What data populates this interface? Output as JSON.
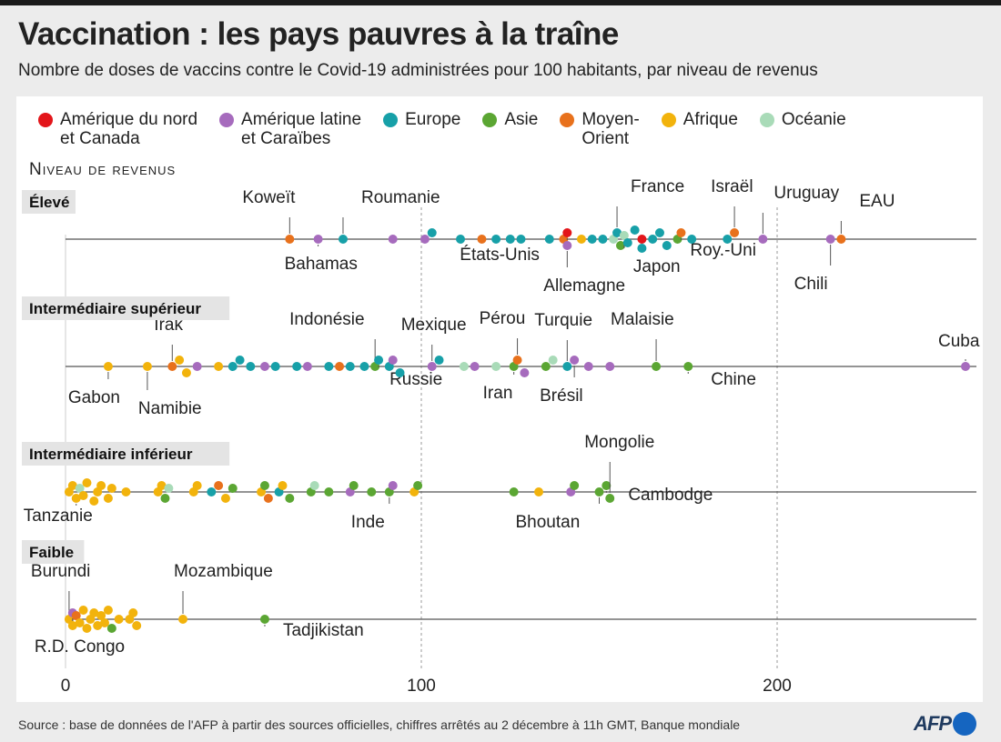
{
  "title": "Vaccination : les pays pauvres à la traîne",
  "subtitle": "Nombre de doses de vaccins contre le Covid-19 administrées pour 100 habitants, par niveau de revenus",
  "source": "Source : base de données de l'AFP à partir des sources officielles, chiffres arrêtés au 2 décembre à 11h GMT, Banque mondiale",
  "logo_text": "AFP",
  "section_title": "Niveau de revenus",
  "legend": [
    {
      "key": "nam",
      "label": "Amérique du nord\net Canada",
      "color": "#e3151a"
    },
    {
      "key": "lat",
      "label": "Amérique latine\net Caraïbes",
      "color": "#a66bbd"
    },
    {
      "key": "eur",
      "label": "Europe",
      "color": "#17a0a8"
    },
    {
      "key": "asi",
      "label": "Asie",
      "color": "#5ba633"
    },
    {
      "key": "mo",
      "label": "Moyen-\nOrient",
      "color": "#e8711c"
    },
    {
      "key": "afr",
      "label": "Afrique",
      "color": "#f2b30c"
    },
    {
      "key": "oce",
      "label": "Océanie",
      "color": "#a9dbb8"
    }
  ],
  "chart_data": {
    "type": "scatter",
    "x_range": [
      0,
      250
    ],
    "x_ticks": [
      0,
      100,
      200
    ],
    "rows": [
      {
        "label": "Élevé",
        "points": [
          {
            "x": 63,
            "region": "mo",
            "label": "Koweït"
          },
          {
            "x": 71,
            "region": "lat",
            "label": "Bahamas"
          },
          {
            "x": 78,
            "region": "eur",
            "label": "Roumanie"
          },
          {
            "x": 92,
            "region": "lat"
          },
          {
            "x": 101,
            "region": "lat"
          },
          {
            "x": 103,
            "region": "eur"
          },
          {
            "x": 111,
            "region": "eur"
          },
          {
            "x": 117,
            "region": "mo"
          },
          {
            "x": 121,
            "region": "eur"
          },
          {
            "x": 125,
            "region": "eur"
          },
          {
            "x": 128,
            "region": "eur"
          },
          {
            "x": 136,
            "region": "eur"
          },
          {
            "x": 140,
            "region": "mo"
          },
          {
            "x": 141,
            "region": "nam",
            "label": "États-Unis"
          },
          {
            "x": 141,
            "region": "lat",
            "label": "Allemagne"
          },
          {
            "x": 145,
            "region": "afr"
          },
          {
            "x": 148,
            "region": "eur"
          },
          {
            "x": 151,
            "region": "eur"
          },
          {
            "x": 154,
            "region": "oce"
          },
          {
            "x": 155,
            "region": "eur",
            "label": "France"
          },
          {
            "x": 156,
            "region": "asi"
          },
          {
            "x": 157,
            "region": "oce",
            "label": "Japon"
          },
          {
            "x": 158,
            "region": "eur"
          },
          {
            "x": 160,
            "region": "eur"
          },
          {
            "x": 162,
            "region": "eur"
          },
          {
            "x": 162,
            "region": "nam"
          },
          {
            "x": 165,
            "region": "eur"
          },
          {
            "x": 167,
            "region": "eur"
          },
          {
            "x": 169,
            "region": "eur"
          },
          {
            "x": 172,
            "region": "asi"
          },
          {
            "x": 173,
            "region": "mo",
            "label": "Roy.-Uni"
          },
          {
            "x": 176,
            "region": "eur"
          },
          {
            "x": 186,
            "region": "eur"
          },
          {
            "x": 188,
            "region": "mo",
            "label": "Israël"
          },
          {
            "x": 196,
            "region": "lat",
            "label": "Uruguay"
          },
          {
            "x": 215,
            "region": "lat",
            "label": "Chili"
          },
          {
            "x": 218,
            "region": "mo",
            "label": "EAU"
          }
        ]
      },
      {
        "label": "Intermédiaire supérieur",
        "points": [
          {
            "x": 12,
            "region": "afr",
            "label": "Gabon"
          },
          {
            "x": 23,
            "region": "afr",
            "label": "Namibie"
          },
          {
            "x": 30,
            "region": "mo",
            "label": "Irak"
          },
          {
            "x": 32,
            "region": "afr"
          },
          {
            "x": 34,
            "region": "afr"
          },
          {
            "x": 37,
            "region": "lat"
          },
          {
            "x": 43,
            "region": "afr"
          },
          {
            "x": 47,
            "region": "eur"
          },
          {
            "x": 49,
            "region": "eur"
          },
          {
            "x": 52,
            "region": "eur"
          },
          {
            "x": 56,
            "region": "lat"
          },
          {
            "x": 59,
            "region": "eur"
          },
          {
            "x": 65,
            "region": "eur"
          },
          {
            "x": 68,
            "region": "lat"
          },
          {
            "x": 74,
            "region": "eur"
          },
          {
            "x": 77,
            "region": "mo"
          },
          {
            "x": 80,
            "region": "eur"
          },
          {
            "x": 84,
            "region": "eur"
          },
          {
            "x": 87,
            "region": "asi",
            "label": "Indonésie"
          },
          {
            "x": 88,
            "region": "eur",
            "label": "Russie"
          },
          {
            "x": 91,
            "region": "eur"
          },
          {
            "x": 92,
            "region": "lat"
          },
          {
            "x": 94,
            "region": "eur"
          },
          {
            "x": 103,
            "region": "lat",
            "label": "Mexique"
          },
          {
            "x": 105,
            "region": "eur"
          },
          {
            "x": 112,
            "region": "oce"
          },
          {
            "x": 115,
            "region": "lat"
          },
          {
            "x": 121,
            "region": "oce"
          },
          {
            "x": 126,
            "region": "asi",
            "label": "Iran"
          },
          {
            "x": 127,
            "region": "mo",
            "label": "Pérou"
          },
          {
            "x": 129,
            "region": "lat"
          },
          {
            "x": 135,
            "region": "asi"
          },
          {
            "x": 137,
            "region": "oce"
          },
          {
            "x": 141,
            "region": "eur",
            "label": "Turquie"
          },
          {
            "x": 143,
            "region": "lat",
            "label": "Brésil"
          },
          {
            "x": 147,
            "region": "lat"
          },
          {
            "x": 153,
            "region": "lat"
          },
          {
            "x": 166,
            "region": "asi",
            "label": "Malaisie"
          },
          {
            "x": 175,
            "region": "asi",
            "label": "Chine"
          },
          {
            "x": 253,
            "region": "lat",
            "label": "Cuba"
          }
        ]
      },
      {
        "label": "Intermédiaire inférieur",
        "points": [
          {
            "x": 1,
            "region": "afr"
          },
          {
            "x": 2,
            "region": "afr"
          },
          {
            "x": 3,
            "region": "afr",
            "label": "Tanzanie"
          },
          {
            "x": 4,
            "region": "oce"
          },
          {
            "x": 5,
            "region": "afr"
          },
          {
            "x": 6,
            "region": "afr"
          },
          {
            "x": 8,
            "region": "afr"
          },
          {
            "x": 9,
            "region": "afr"
          },
          {
            "x": 10,
            "region": "afr"
          },
          {
            "x": 12,
            "region": "afr"
          },
          {
            "x": 13,
            "region": "afr"
          },
          {
            "x": 17,
            "region": "afr"
          },
          {
            "x": 26,
            "region": "afr"
          },
          {
            "x": 27,
            "region": "afr"
          },
          {
            "x": 28,
            "region": "asi"
          },
          {
            "x": 29,
            "region": "oce"
          },
          {
            "x": 36,
            "region": "afr"
          },
          {
            "x": 37,
            "region": "afr"
          },
          {
            "x": 41,
            "region": "eur"
          },
          {
            "x": 43,
            "region": "mo"
          },
          {
            "x": 45,
            "region": "afr"
          },
          {
            "x": 47,
            "region": "asi"
          },
          {
            "x": 55,
            "region": "afr"
          },
          {
            "x": 56,
            "region": "asi"
          },
          {
            "x": 57,
            "region": "mo"
          },
          {
            "x": 60,
            "region": "eur"
          },
          {
            "x": 61,
            "region": "afr"
          },
          {
            "x": 63,
            "region": "asi"
          },
          {
            "x": 69,
            "region": "asi"
          },
          {
            "x": 70,
            "region": "oce"
          },
          {
            "x": 74,
            "region": "asi"
          },
          {
            "x": 80,
            "region": "lat"
          },
          {
            "x": 81,
            "region": "asi"
          },
          {
            "x": 86,
            "region": "asi"
          },
          {
            "x": 91,
            "region": "asi",
            "label": "Inde"
          },
          {
            "x": 92,
            "region": "lat"
          },
          {
            "x": 98,
            "region": "afr"
          },
          {
            "x": 99,
            "region": "asi"
          },
          {
            "x": 126,
            "region": "asi"
          },
          {
            "x": 133,
            "region": "afr"
          },
          {
            "x": 142,
            "region": "lat"
          },
          {
            "x": 143,
            "region": "asi"
          },
          {
            "x": 150,
            "region": "asi",
            "label": "Bhoutan"
          },
          {
            "x": 152,
            "region": "asi",
            "label": "Cambodge"
          },
          {
            "x": 153,
            "region": "asi",
            "label": "Mongolie"
          }
        ]
      },
      {
        "label": "Faible",
        "points": [
          {
            "x": 1,
            "region": "afr",
            "label": "Burundi"
          },
          {
            "x": 2,
            "region": "lat",
            "label": "R.D. Congo"
          },
          {
            "x": 2,
            "region": "afr"
          },
          {
            "x": 3,
            "region": "mo"
          },
          {
            "x": 4,
            "region": "afr"
          },
          {
            "x": 5,
            "region": "afr"
          },
          {
            "x": 6,
            "region": "afr"
          },
          {
            "x": 7,
            "region": "afr"
          },
          {
            "x": 8,
            "region": "afr"
          },
          {
            "x": 9,
            "region": "afr"
          },
          {
            "x": 10,
            "region": "afr"
          },
          {
            "x": 11,
            "region": "afr"
          },
          {
            "x": 12,
            "region": "afr"
          },
          {
            "x": 13,
            "region": "asi"
          },
          {
            "x": 15,
            "region": "afr"
          },
          {
            "x": 18,
            "region": "afr"
          },
          {
            "x": 19,
            "region": "afr"
          },
          {
            "x": 20,
            "region": "afr"
          },
          {
            "x": 33,
            "region": "afr",
            "label": "Mozambique"
          },
          {
            "x": 56,
            "region": "asi",
            "label": "Tadjikistan"
          }
        ]
      }
    ]
  }
}
